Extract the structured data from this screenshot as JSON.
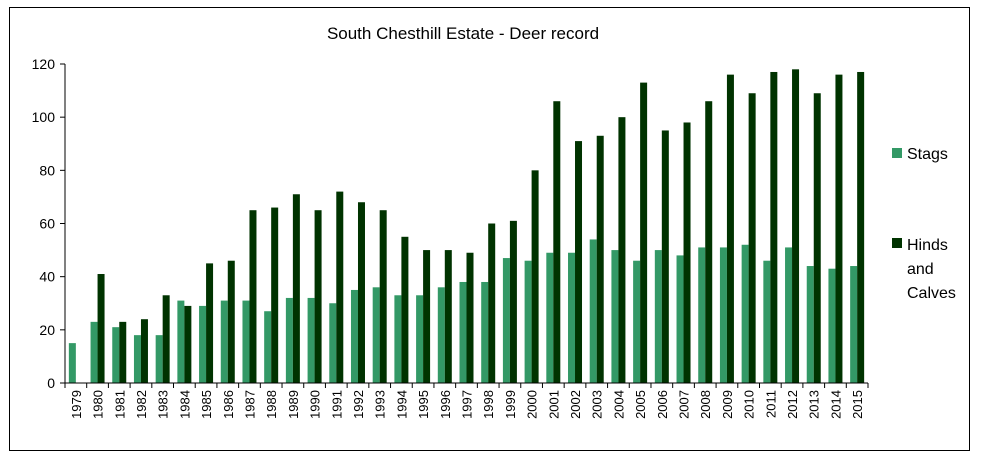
{
  "chart_data": {
    "type": "bar",
    "title": "South Chesthill Estate - Deer record",
    "xlabel": "",
    "ylabel": "",
    "ylim": [
      0,
      120
    ],
    "yticks": [
      0,
      20,
      40,
      60,
      80,
      100,
      120
    ],
    "grid": false,
    "legend_position": "right",
    "categories": [
      "1979",
      "1980",
      "1981",
      "1982",
      "1983",
      "1984",
      "1985",
      "1986",
      "1987",
      "1988",
      "1989",
      "1990",
      "1991",
      "1992",
      "1993",
      "1994",
      "1995",
      "1996",
      "1997",
      "1998",
      "1999",
      "2000",
      "2001",
      "2002",
      "2003",
      "2004",
      "2005",
      "2006",
      "2007",
      "2008",
      "2009",
      "2010",
      "2011",
      "2012",
      "2013",
      "2014",
      "2015"
    ],
    "series": [
      {
        "name": "Stags",
        "color": "#339966",
        "values": [
          15,
          23,
          21,
          18,
          18,
          31,
          29,
          31,
          31,
          27,
          32,
          32,
          30,
          35,
          36,
          33,
          33,
          36,
          38,
          38,
          47,
          46,
          49,
          49,
          54,
          50,
          46,
          50,
          48,
          51,
          51,
          52,
          46,
          51,
          44,
          43,
          44
        ]
      },
      {
        "name": "Hinds and Calves",
        "color": "#003300",
        "values": [
          null,
          41,
          23,
          24,
          33,
          29,
          45,
          46,
          65,
          66,
          71,
          65,
          72,
          68,
          65,
          55,
          50,
          50,
          49,
          60,
          61,
          80,
          106,
          91,
          93,
          100,
          113,
          95,
          98,
          106,
          116,
          109,
          117,
          118,
          109,
          116,
          117
        ]
      }
    ]
  }
}
